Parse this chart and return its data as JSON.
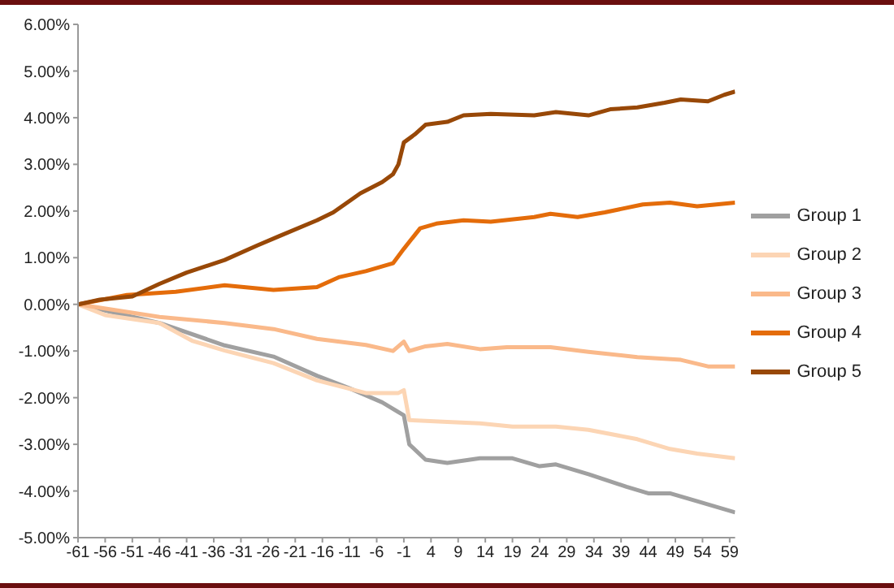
{
  "chart_data": {
    "type": "line",
    "xlim": [
      -61,
      60
    ],
    "xticks": [
      -61,
      -56,
      -51,
      -46,
      -41,
      -36,
      -31,
      -26,
      -21,
      -16,
      -11,
      -6,
      -1,
      4,
      9,
      14,
      19,
      24,
      29,
      34,
      39,
      44,
      49,
      54,
      59
    ],
    "ylim": [
      -5,
      6
    ],
    "yticks": [
      {
        "value": -5,
        "label": "-5.00%"
      },
      {
        "value": -4,
        "label": "-4.00%"
      },
      {
        "value": -3,
        "label": "-3.00%"
      },
      {
        "value": -2,
        "label": "-2.00%"
      },
      {
        "value": -1,
        "label": "-1.00%"
      },
      {
        "value": 0,
        "label": "0.00%"
      },
      {
        "value": 1,
        "label": "1.00%"
      },
      {
        "value": 2,
        "label": "2.00%"
      },
      {
        "value": 3,
        "label": "3.00%"
      },
      {
        "value": 4,
        "label": "4.00%"
      },
      {
        "value": 5,
        "label": "5.00%"
      },
      {
        "value": 6,
        "label": "6.00%"
      }
    ],
    "grid": false,
    "legend": "right",
    "marker": "none",
    "line_style": "solid",
    "series": [
      {
        "name": "Group 1",
        "color": "#a0a0a0",
        "x": [
          -61,
          -46,
          -34,
          -25,
          -17,
          -11,
          -5,
          -1,
          0,
          3,
          7,
          13,
          19,
          24,
          27,
          33,
          40,
          44,
          48,
          53,
          60
        ],
        "values": [
          0,
          -0.4,
          -0.88,
          -1.12,
          -1.53,
          -1.8,
          -2.1,
          -2.38,
          -3.0,
          -3.33,
          -3.4,
          -3.3,
          -3.3,
          -3.47,
          -3.43,
          -3.64,
          -3.91,
          -4.05,
          -4.05,
          -4.22,
          -4.46
        ]
      },
      {
        "name": "Group 2",
        "color": "#fcd5b4",
        "x": [
          -61,
          -56,
          -46,
          -40,
          -34,
          -25,
          -17,
          -8,
          -2,
          -1,
          0,
          7,
          13,
          19,
          27,
          33,
          42,
          48,
          53,
          60
        ],
        "values": [
          0,
          -0.23,
          -0.4,
          -0.78,
          -0.99,
          -1.26,
          -1.63,
          -1.9,
          -1.9,
          -1.84,
          -2.48,
          -2.52,
          -2.55,
          -2.62,
          -2.62,
          -2.69,
          -2.89,
          -3.1,
          -3.2,
          -3.3
        ]
      },
      {
        "name": "Group 3",
        "color": "#fab98a",
        "x": [
          -61,
          -46,
          -34,
          -25,
          -17,
          -8,
          -3,
          -1,
          0,
          3,
          7,
          13,
          18,
          26,
          33,
          42,
          50,
          55,
          60
        ],
        "values": [
          0,
          -0.27,
          -0.4,
          -0.53,
          -0.74,
          -0.87,
          -1.0,
          -0.8,
          -1.0,
          -0.9,
          -0.85,
          -0.96,
          -0.92,
          -0.92,
          -1.02,
          -1.13,
          -1.19,
          -1.33,
          -1.33
        ]
      },
      {
        "name": "Group 4",
        "color": "#e46c0a",
        "x": [
          -61,
          -52,
          -43,
          -34,
          -25,
          -17,
          -13,
          -8,
          -3,
          -1,
          2,
          5,
          10,
          15,
          23,
          26,
          31,
          36,
          43,
          48,
          53,
          60
        ],
        "values": [
          0,
          0.2,
          0.27,
          0.41,
          0.31,
          0.37,
          0.58,
          0.71,
          0.88,
          1.19,
          1.63,
          1.73,
          1.8,
          1.77,
          1.87,
          1.94,
          1.87,
          1.97,
          2.14,
          2.18,
          2.1,
          2.18
        ]
      },
      {
        "name": "Group 5",
        "color": "#984807",
        "x": [
          -61,
          -57,
          -51,
          -46,
          -41,
          -34,
          -28,
          -24,
          -17,
          -14,
          -9,
          -5,
          -3,
          -2,
          -1,
          1,
          3,
          7,
          10,
          15,
          23,
          27,
          33,
          37,
          42,
          47,
          50,
          55,
          58,
          60
        ],
        "values": [
          0,
          0.1,
          0.17,
          0.44,
          0.68,
          0.95,
          1.26,
          1.46,
          1.8,
          1.97,
          2.38,
          2.62,
          2.79,
          3.0,
          3.47,
          3.64,
          3.85,
          3.91,
          4.05,
          4.08,
          4.05,
          4.12,
          4.05,
          4.18,
          4.22,
          4.32,
          4.39,
          4.35,
          4.49,
          4.56
        ]
      }
    ]
  }
}
